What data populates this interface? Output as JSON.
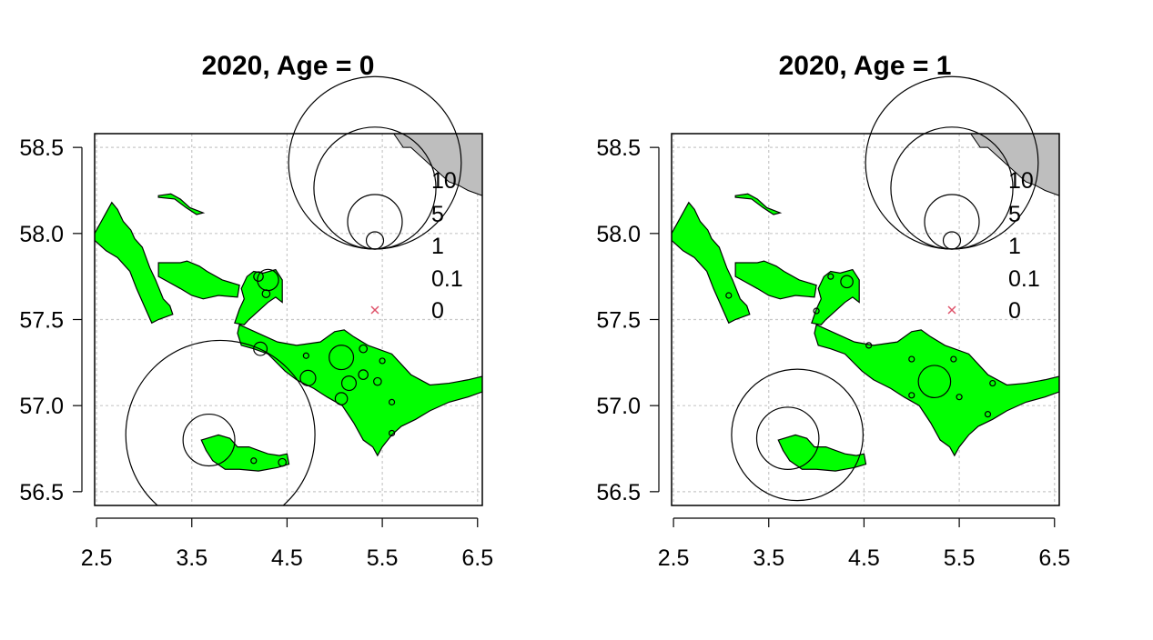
{
  "chart_data": [
    {
      "type": "scatter",
      "subtype": "bubble-map",
      "title": "2020, Age = 0",
      "xlim": [
        2.48,
        6.55
      ],
      "ylim": [
        56.42,
        58.58
      ],
      "x_ticks": [
        2.5,
        3.5,
        4.5,
        5.5,
        6.5
      ],
      "x_tick_labels": [
        "2.5",
        "3.5",
        "4.5",
        "5.5",
        "6.5"
      ],
      "y_ticks": [
        56.5,
        57.0,
        57.5,
        58.0,
        58.5
      ],
      "y_tick_labels": [
        "56.5",
        "57.0",
        "57.5",
        "58.0",
        "58.5"
      ],
      "grid": true,
      "legend_position": "top-right",
      "legend": [
        {
          "label": "10",
          "value": 10,
          "symbol": "circle"
        },
        {
          "label": "5",
          "value": 5,
          "symbol": "circle"
        },
        {
          "label": "1",
          "value": 1,
          "symbol": "circle"
        },
        {
          "label": "0.1",
          "value": 0.1,
          "symbol": "circle"
        },
        {
          "label": "0",
          "value": 0,
          "symbol": "x"
        }
      ],
      "points": [
        {
          "x": 3.8,
          "y": 56.83,
          "value": 12
        },
        {
          "x": 3.68,
          "y": 56.8,
          "value": 0.9
        },
        {
          "x": 4.3,
          "y": 57.73,
          "value": 0.15
        },
        {
          "x": 4.2,
          "y": 57.75,
          "value": 0.03
        },
        {
          "x": 4.28,
          "y": 57.65,
          "value": 0.02
        },
        {
          "x": 4.22,
          "y": 57.33,
          "value": 0.06
        },
        {
          "x": 5.07,
          "y": 57.28,
          "value": 0.2
        },
        {
          "x": 4.72,
          "y": 57.16,
          "value": 0.08
        },
        {
          "x": 4.7,
          "y": 57.29,
          "value": 0.01
        },
        {
          "x": 5.15,
          "y": 57.13,
          "value": 0.07
        },
        {
          "x": 5.07,
          "y": 57.04,
          "value": 0.05
        },
        {
          "x": 5.3,
          "y": 57.18,
          "value": 0.03
        },
        {
          "x": 5.45,
          "y": 57.14,
          "value": 0.02
        },
        {
          "x": 5.3,
          "y": 57.33,
          "value": 0.02
        },
        {
          "x": 5.5,
          "y": 57.26,
          "value": 0.01
        },
        {
          "x": 5.6,
          "y": 57.02,
          "value": 0.01
        },
        {
          "x": 5.6,
          "y": 56.84,
          "value": 0.01
        },
        {
          "x": 4.45,
          "y": 56.67,
          "value": 0.02
        },
        {
          "x": 4.15,
          "y": 56.68,
          "value": 0.01
        }
      ]
    },
    {
      "type": "scatter",
      "subtype": "bubble-map",
      "title": "2020, Age = 1",
      "xlim": [
        2.48,
        6.55
      ],
      "ylim": [
        56.42,
        58.58
      ],
      "x_ticks": [
        2.5,
        3.5,
        4.5,
        5.5,
        6.5
      ],
      "x_tick_labels": [
        "2.5",
        "3.5",
        "4.5",
        "5.5",
        "6.5"
      ],
      "y_ticks": [
        56.5,
        57.0,
        57.5,
        58.0,
        58.5
      ],
      "y_tick_labels": [
        "56.5",
        "57.0",
        "57.5",
        "58.0",
        "58.5"
      ],
      "grid": true,
      "legend_position": "top-right",
      "legend": [
        {
          "label": "10",
          "value": 10,
          "symbol": "circle"
        },
        {
          "label": "5",
          "value": 5,
          "symbol": "circle"
        },
        {
          "label": "1",
          "value": 1,
          "symbol": "circle"
        },
        {
          "label": "0.1",
          "value": 0.1,
          "symbol": "circle"
        },
        {
          "label": "0",
          "value": 0,
          "symbol": "x"
        }
      ],
      "points": [
        {
          "x": 3.8,
          "y": 56.83,
          "value": 5.8
        },
        {
          "x": 3.7,
          "y": 56.81,
          "value": 1.3
        },
        {
          "x": 5.24,
          "y": 57.14,
          "value": 0.35
        },
        {
          "x": 4.32,
          "y": 57.72,
          "value": 0.05
        },
        {
          "x": 4.15,
          "y": 57.75,
          "value": 0.01
        },
        {
          "x": 3.08,
          "y": 57.64,
          "value": 0.01
        },
        {
          "x": 4.0,
          "y": 57.55,
          "value": 0.01
        },
        {
          "x": 5.0,
          "y": 57.27,
          "value": 0.01
        },
        {
          "x": 5.44,
          "y": 57.27,
          "value": 0.01
        },
        {
          "x": 5.0,
          "y": 57.06,
          "value": 0.01
        },
        {
          "x": 5.5,
          "y": 57.05,
          "value": 0.01
        },
        {
          "x": 5.85,
          "y": 57.13,
          "value": 0.01
        },
        {
          "x": 5.8,
          "y": 56.95,
          "value": 0.01
        },
        {
          "x": 4.55,
          "y": 57.35,
          "value": 0.01
        }
      ]
    }
  ],
  "colors": {
    "land_fill": "#00ff00",
    "land_outline": "#000000",
    "coast_fill": "#bebebe",
    "grid": "#c8c8c8",
    "zero_marker": "#df536b"
  }
}
